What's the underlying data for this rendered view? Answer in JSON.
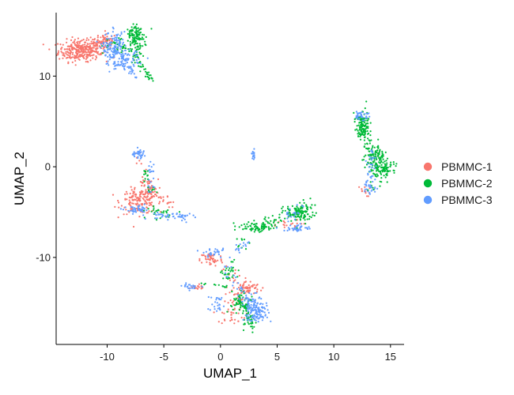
{
  "chart_data": {
    "type": "scatter",
    "title": "",
    "xlabel": "UMAP_1",
    "ylabel": "UMAP_2",
    "xlim": [
      -14.5,
      16.2
    ],
    "ylim": [
      -19.6,
      17.0
    ],
    "xticks": [
      -10,
      -5,
      0,
      5,
      10,
      15
    ],
    "yticks": [
      -10,
      0,
      10
    ],
    "grid": false,
    "legend": "right",
    "series": [
      {
        "name": "PBMMC-1",
        "color": "#F8766D",
        "clusters": [
          {
            "c": [
              -12.5,
              12.8
            ],
            "s": [
              0.9,
              0.6
            ],
            "n": 260
          },
          {
            "c": [
              -11.0,
              13.3
            ],
            "s": [
              0.7,
              0.5
            ],
            "n": 90
          },
          {
            "c": [
              -10.0,
              14.0
            ],
            "s": [
              0.4,
              0.3
            ],
            "n": 40
          },
          {
            "c": [
              -7.2,
              -3.8
            ],
            "s": [
              0.8,
              0.7
            ],
            "n": 160
          },
          {
            "c": [
              -6.3,
              -2.6
            ],
            "s": [
              0.4,
              0.6
            ],
            "n": 40
          },
          {
            "c": [
              -0.8,
              -10.2
            ],
            "s": [
              0.5,
              0.4
            ],
            "n": 50
          },
          {
            "c": [
              2.3,
              -13.4
            ],
            "s": [
              0.6,
              0.4
            ],
            "n": 70
          },
          {
            "c": [
              1.0,
              -16.5
            ],
            "s": [
              0.6,
              0.4
            ],
            "n": 25
          },
          {
            "c": [
              -2.2,
              -13.3
            ],
            "s": [
              0.5,
              0.15
            ],
            "n": 20
          },
          {
            "c": [
              5.5,
              -6.4
            ],
            "s": [
              0.8,
              0.3
            ],
            "n": 20
          },
          {
            "c": [
              12.6,
              -2.7
            ],
            "s": [
              0.3,
              0.3
            ],
            "n": 12
          },
          {
            "c": [
              1.3,
              -15.0
            ],
            "s": [
              0.5,
              0.5
            ],
            "n": 20
          }
        ],
        "paths": [
          {
            "p": [
              [
                -5.8,
                -3.2
              ],
              [
                -4.0,
                -4.5
              ]
            ],
            "n": 20,
            "j": 0.25
          },
          {
            "p": [
              [
                -6.9,
                -1.0
              ],
              [
                -6.3,
                -2.5
              ]
            ],
            "n": 12,
            "j": 0.2
          },
          {
            "p": [
              [
                0.2,
                -11.0
              ],
              [
                1.5,
                -12.5
              ]
            ],
            "n": 15,
            "j": 0.3
          },
          {
            "p": [
              [
                -7.5,
                1.6
              ],
              [
                -6.6,
                -0.5
              ]
            ],
            "n": 8,
            "j": 0.2
          }
        ]
      },
      {
        "name": "PBMMC-2",
        "color": "#00BA38",
        "clusters": [
          {
            "c": [
              -7.5,
              14.6
            ],
            "s": [
              0.4,
              0.5
            ],
            "n": 90
          },
          {
            "c": [
              -7.3,
              12.6
            ],
            "s": [
              0.3,
              0.9
            ],
            "n": 50
          },
          {
            "c": [
              -9.0,
              13.0
            ],
            "s": [
              0.7,
              0.6
            ],
            "n": 40
          },
          {
            "c": [
              12.5,
              4.6
            ],
            "s": [
              0.3,
              0.8
            ],
            "n": 110
          },
          {
            "c": [
              13.7,
              1.0
            ],
            "s": [
              0.5,
              0.8
            ],
            "n": 80
          },
          {
            "c": [
              14.5,
              -0.2
            ],
            "s": [
              0.5,
              0.4
            ],
            "n": 60
          },
          {
            "c": [
              7.0,
              -5.2
            ],
            "s": [
              0.7,
              0.5
            ],
            "n": 90
          },
          {
            "c": [
              3.0,
              -6.6
            ],
            "s": [
              1.0,
              0.3
            ],
            "n": 70
          },
          {
            "c": [
              1.8,
              -15.3
            ],
            "s": [
              0.4,
              0.6
            ],
            "n": 50
          },
          {
            "c": [
              2.7,
              -17.2
            ],
            "s": [
              0.3,
              0.6
            ],
            "n": 30
          },
          {
            "c": [
              -5.5,
              -5.0
            ],
            "s": [
              0.6,
              0.4
            ],
            "n": 30
          },
          {
            "c": [
              -6.0,
              -2.5
            ],
            "s": [
              0.3,
              0.3
            ],
            "n": 10
          },
          {
            "c": [
              0.8,
              -11.8
            ],
            "s": [
              0.4,
              0.7
            ],
            "n": 30
          },
          {
            "c": [
              -6.6,
              -0.9
            ],
            "s": [
              0.2,
              0.4
            ],
            "n": 12
          }
        ],
        "paths": [
          {
            "p": [
              [
                12.3,
                5.8
              ],
              [
                12.9,
                3.0
              ],
              [
                13.8,
                1.0
              ],
              [
                14.6,
                -0.5
              ],
              [
                13.0,
                -2.8
              ]
            ],
            "n": 100,
            "j": 0.3
          },
          {
            "p": [
              [
                -7.6,
                12.0
              ],
              [
                -6.5,
                10.2
              ],
              [
                -5.9,
                9.4
              ]
            ],
            "n": 25,
            "j": 0.15
          },
          {
            "p": [
              [
                1.5,
                -8.8
              ],
              [
                4.0,
                -6.0
              ],
              [
                6.5,
                -5.0
              ],
              [
                7.6,
                -4.3
              ]
            ],
            "n": 80,
            "j": 0.3
          },
          {
            "p": [
              [
                1.2,
                -14.0
              ],
              [
                2.6,
                -17.0
              ]
            ],
            "n": 30,
            "j": 0.2
          },
          {
            "p": [
              [
                -1.8,
                -12.8
              ],
              [
                0.5,
                -13.2
              ]
            ],
            "n": 12,
            "j": 0.1
          }
        ]
      },
      {
        "name": "PBMMC-3",
        "color": "#619CFF",
        "clusters": [
          {
            "c": [
              -9.4,
              13.0
            ],
            "s": [
              0.5,
              0.9
            ],
            "n": 150
          },
          {
            "c": [
              -8.2,
              11.8
            ],
            "s": [
              0.5,
              0.5
            ],
            "n": 60
          },
          {
            "c": [
              -7.2,
              1.4
            ],
            "s": [
              0.4,
              0.25
            ],
            "n": 35
          },
          {
            "c": [
              -7.3,
              -4.8
            ],
            "s": [
              0.5,
              0.2
            ],
            "n": 45
          },
          {
            "c": [
              -4.5,
              -5.4
            ],
            "s": [
              1.0,
              0.2
            ],
            "n": 40
          },
          {
            "c": [
              -3.3,
              -5.6
            ],
            "s": [
              0.3,
              0.3
            ],
            "n": 15
          },
          {
            "c": [
              3.0,
              -15.6
            ],
            "s": [
              0.6,
              0.7
            ],
            "n": 110
          },
          {
            "c": [
              3.3,
              -16.2
            ],
            "s": [
              0.3,
              0.4
            ],
            "n": 40
          },
          {
            "c": [
              6.8,
              -6.8
            ],
            "s": [
              0.6,
              0.2
            ],
            "n": 40
          },
          {
            "c": [
              12.5,
              5.7
            ],
            "s": [
              0.3,
              0.3
            ],
            "n": 35
          },
          {
            "c": [
              13.1,
              -2.3
            ],
            "s": [
              0.4,
              0.4
            ],
            "n": 25
          },
          {
            "c": [
              -0.5,
              -9.5
            ],
            "s": [
              0.5,
              0.2
            ],
            "n": 25
          },
          {
            "c": [
              -2.6,
              -13.2
            ],
            "s": [
              0.4,
              0.15
            ],
            "n": 20
          },
          {
            "c": [
              2.9,
              1.1
            ],
            "s": [
              0.08,
              0.35
            ],
            "n": 14
          },
          {
            "c": [
              -0.3,
              -15.2
            ],
            "s": [
              0.4,
              0.5
            ],
            "n": 25
          }
        ],
        "paths": [
          {
            "p": [
              [
                -9.4,
                11.4
              ],
              [
                -8.0,
                10.8
              ],
              [
                -7.4,
                9.8
              ]
            ],
            "n": 25,
            "j": 0.15
          },
          {
            "p": [
              [
                -6.4,
                0.8
              ],
              [
                -6.0,
                -1.4
              ],
              [
                -6.2,
                -3.0
              ]
            ],
            "n": 20,
            "j": 0.2
          },
          {
            "p": [
              [
                13.6,
                2.2
              ],
              [
                13.3,
                0.4
              ],
              [
                13.3,
                -1.6
              ]
            ],
            "n": 30,
            "j": 0.2
          },
          {
            "p": [
              [
                0.0,
                -9.5
              ],
              [
                1.5,
                -13.5
              ],
              [
                2.5,
                -15.0
              ]
            ],
            "n": 30,
            "j": 0.3
          },
          {
            "p": [
              [
                1.5,
                -9.2
              ],
              [
                2.5,
                -8.4
              ]
            ],
            "n": 15,
            "j": 0.2
          },
          {
            "p": [
              [
                6.0,
                -5.6
              ],
              [
                7.2,
                -4.6
              ]
            ],
            "n": 20,
            "j": 0.3
          }
        ]
      }
    ]
  }
}
